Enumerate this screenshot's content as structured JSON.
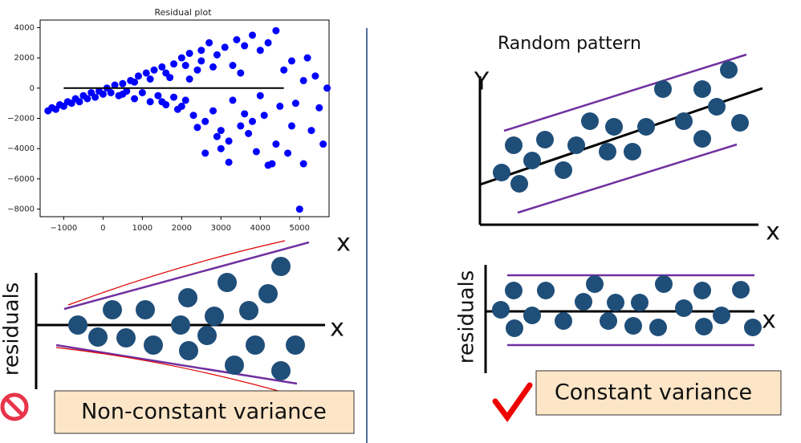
{
  "chart_data": {
    "type": "scatter",
    "title": "Residual plot",
    "color": "#0000ff",
    "xlim": [
      -1600,
      5750
    ],
    "ylim": [
      -8500,
      4500
    ],
    "xticks": [
      {
        "value": -1000,
        "label": "−1000"
      },
      0,
      1000,
      2000,
      3000,
      4000,
      5000
    ],
    "yticks": [
      4000,
      2000,
      0,
      {
        "value": -2000,
        "label": "−2000"
      },
      {
        "value": -4000,
        "label": "−4000"
      },
      {
        "value": -6000,
        "label": "−6000"
      },
      {
        "value": -8000,
        "label": "−8000"
      }
    ],
    "hline": {
      "y": 0,
      "x": [
        -1000,
        4600
      ]
    },
    "x": [
      -1400,
      -1300,
      -1200,
      -1100,
      -1000,
      -900,
      -800,
      -700,
      -600,
      -500,
      -400,
      -300,
      -200,
      -100,
      0,
      100,
      200,
      300,
      400,
      500,
      600,
      700,
      800,
      900,
      1000,
      1100,
      1200,
      1300,
      1400,
      1500,
      1600,
      1700,
      1800,
      1900,
      2000,
      2100,
      2200,
      2300,
      2400,
      2500,
      2600,
      2700,
      2800,
      2900,
      3000,
      3100,
      3200,
      3300,
      3400,
      3500,
      3600,
      3700,
      3800,
      3900,
      4000,
      4100,
      4200,
      4300,
      4400,
      4500,
      4600,
      4700,
      4800,
      4900,
      5000,
      5100,
      5200,
      5300,
      5400,
      5500,
      5600,
      5700,
      2600,
      3000,
      3200,
      4200,
      3300,
      2000,
      1500,
      2500,
      3500,
      1800,
      2200,
      2800,
      3600,
      4000,
      4800,
      5100,
      2400,
      2900,
      1200,
      800,
      1600,
      2100,
      3800,
      4400,
      500
    ],
    "y": [
      -1500,
      -1300,
      -1400,
      -1100,
      -1200,
      -900,
      -1000,
      -700,
      -900,
      -500,
      -700,
      -300,
      -600,
      -200,
      -400,
      0,
      -300,
      200,
      -500,
      300,
      -200,
      500,
      -700,
      800,
      -300,
      1000,
      -900,
      1200,
      -500,
      1400,
      -1100,
      700,
      1600,
      -1400,
      2000,
      -800,
      2300,
      -1800,
      1200,
      2500,
      -2200,
      3000,
      -1500,
      2200,
      -2800,
      2700,
      -3500,
      1500,
      3200,
      -2500,
      2800,
      -3000,
      3500,
      -4200,
      2500,
      -1800,
      3000,
      -5000,
      3800,
      -1200,
      1200,
      -4300,
      1800,
      -1000,
      -8000,
      -5000,
      2000,
      -2800,
      800,
      -1300,
      -3700,
      0,
      -4300,
      -4000,
      -4900,
      -5100,
      -800,
      -1200,
      -900,
      1800,
      1000,
      -600,
      600,
      1400,
      -1700,
      -500,
      -2500,
      500,
      -2600,
      -3200,
      600,
      400,
      1000,
      1500,
      -2200,
      -3700,
      -400
    ]
  },
  "diagrams": {
    "left": {
      "x_top": "x",
      "x_axis": "x",
      "y_axis": "residuals",
      "caption": "Non-constant variance"
    },
    "right_top": {
      "title": "Random pattern",
      "y_axis": "Y",
      "x_axis": "x"
    },
    "right_bottom": {
      "y_axis": "residuals",
      "x_axis": "x",
      "caption": "Constant variance"
    }
  }
}
